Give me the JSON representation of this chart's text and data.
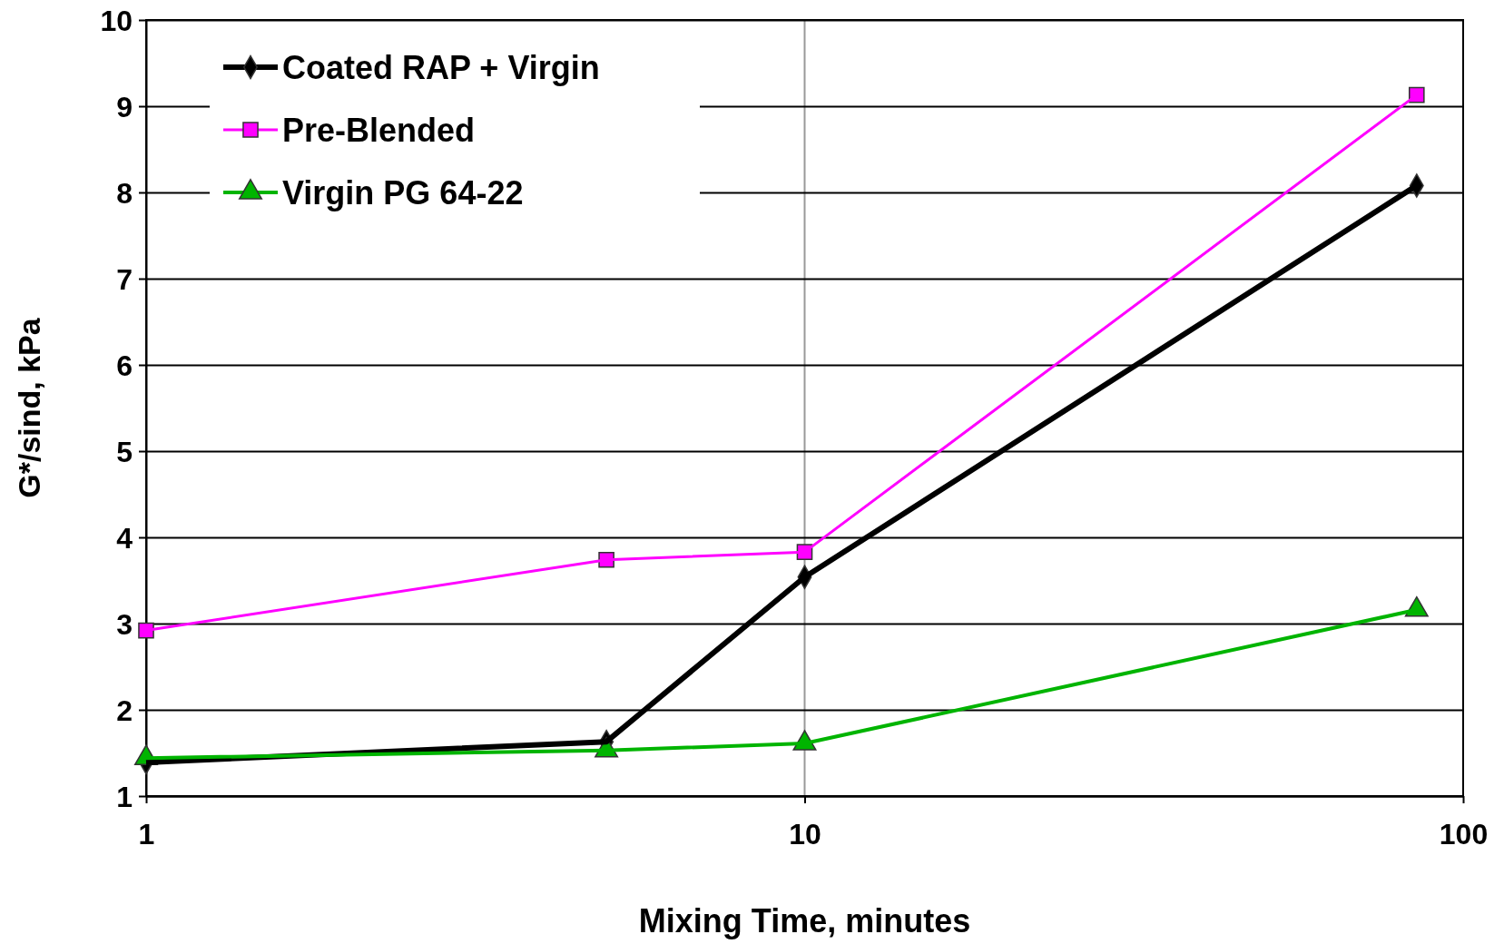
{
  "chart_data": {
    "type": "line",
    "xlabel": "Mixing Time, minutes",
    "ylabel": "G*/sind, kPa",
    "log": "x",
    "xlim": [
      1,
      100
    ],
    "xticks": [
      1,
      10,
      100
    ],
    "ylim": [
      1,
      10
    ],
    "yticks": [
      1,
      2,
      3,
      4,
      5,
      6,
      7,
      8,
      9,
      10
    ],
    "grid": "y",
    "ref_lines": [
      {
        "axis": "x",
        "value": 10,
        "color": "#999999"
      }
    ],
    "legend": "top left",
    "x": [
      1,
      5,
      10,
      85
    ],
    "series": [
      {
        "name": "Coated RAP + Virgin",
        "color": "#000000",
        "marker": "diamond",
        "values": [
          1.39,
          1.63,
          3.54,
          8.08
        ]
      },
      {
        "name": "Pre-Blended",
        "color": "#ff00ff",
        "marker": "square",
        "values": [
          2.92,
          3.74,
          3.83,
          9.13
        ]
      },
      {
        "name": "Virgin PG 64-22",
        "color": "#00b400",
        "marker": "triangle",
        "values": [
          1.44,
          1.53,
          1.61,
          3.16
        ]
      }
    ]
  }
}
